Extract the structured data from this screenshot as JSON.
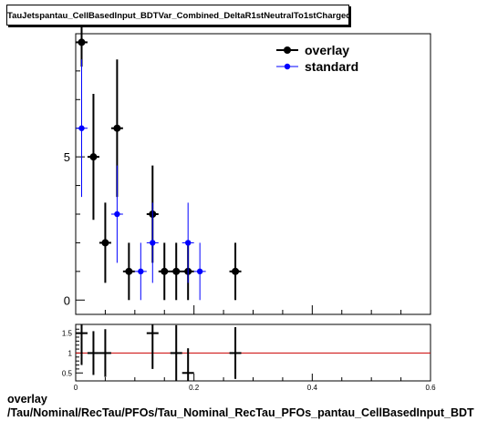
{
  "title": "TauJetspantau_CellBasedInput_BDTVar_Combined_DeltaR1stNeutralTo1stCharged",
  "caption": {
    "line1": "overlay",
    "line2": "/Tau/Nominal/RecTau/PFOs/Tau_Nominal_RecTau_PFOs_pantau_CellBasedInput_BDT"
  },
  "colors": {
    "overlay": "#000000",
    "standard": "#0000ff",
    "ratio_line": "#cc0000"
  },
  "chart_data": [
    {
      "type": "scatter",
      "xlim": [
        0,
        0.6
      ],
      "ylim": [
        -0.5,
        9.3
      ],
      "y_ticks": [
        0,
        5
      ],
      "x_ticks": [
        0,
        0.2,
        0.4,
        0.6
      ],
      "x_tick_labels": [
        "0",
        "0.2",
        "0.4",
        "0.6"
      ],
      "legend": {
        "placement": "top-right",
        "entries": [
          "overlay",
          "standard"
        ]
      },
      "bin_half_width": 0.01,
      "series": [
        {
          "name": "overlay",
          "x": [
            0.01,
            0.03,
            0.05,
            0.07,
            0.09,
            0.13,
            0.15,
            0.17,
            0.19,
            0.27
          ],
          "y": [
            9,
            5,
            2,
            6,
            1,
            3,
            1,
            1,
            1,
            1
          ],
          "err": [
            0.85,
            2.2,
            1.4,
            2.4,
            1.0,
            1.7,
            1.0,
            1.0,
            1.0,
            1.0
          ]
        },
        {
          "name": "standard",
          "x": [
            0.01,
            0.07,
            0.11,
            0.13,
            0.19,
            0.21
          ],
          "y": [
            6,
            3,
            1,
            2,
            2,
            1
          ],
          "err": [
            2.4,
            1.7,
            1.0,
            1.4,
            1.4,
            1.0
          ]
        }
      ]
    },
    {
      "type": "scatter",
      "xlim": [
        0,
        0.6
      ],
      "ylim": [
        0.3,
        1.72
      ],
      "y_ticks": [
        0.5,
        1,
        1.5
      ],
      "y_tick_labels": [
        "0.5",
        "1",
        "1.5"
      ],
      "reference_line": 1,
      "bin_half_width": 0.01,
      "points": [
        {
          "x": 0.01,
          "y": 1.5,
          "err": 0.8
        },
        {
          "x": 0.03,
          "y": 1.0,
          "err": 0.55
        },
        {
          "x": 0.05,
          "y": 1.0,
          "err": 0.6
        },
        {
          "x": 0.13,
          "y": 1.5,
          "err": 0.9
        },
        {
          "x": 0.17,
          "y": 1.0,
          "err": 0.7
        },
        {
          "x": 0.19,
          "y": 0.5,
          "err": 0.62
        },
        {
          "x": 0.27,
          "y": 1.0,
          "err": 0.65
        }
      ]
    }
  ]
}
